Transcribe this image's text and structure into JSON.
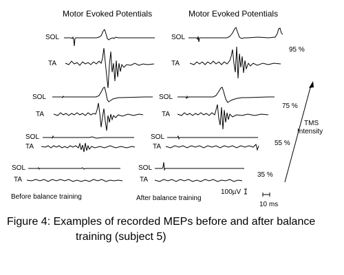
{
  "figure": {
    "column_titles": [
      "Motor Evoked Potentials",
      "Motor Evoked Potentials"
    ],
    "channel_labels": {
      "sol": "SOL",
      "ta": "TA"
    },
    "intensities": [
      "95 %",
      "75 %",
      "55 %",
      "35 %"
    ],
    "tms_axis_label": [
      "TMS",
      "Intensity"
    ],
    "condition_labels": [
      "Before balance training",
      "After balance training"
    ],
    "scale_bars": {
      "amplitude": "100µV",
      "time": "10 ms"
    }
  },
  "caption": {
    "line1": "Figure 4: Examples of recorded MEPs before and after balance",
    "line2": "training (subject 5)"
  }
}
